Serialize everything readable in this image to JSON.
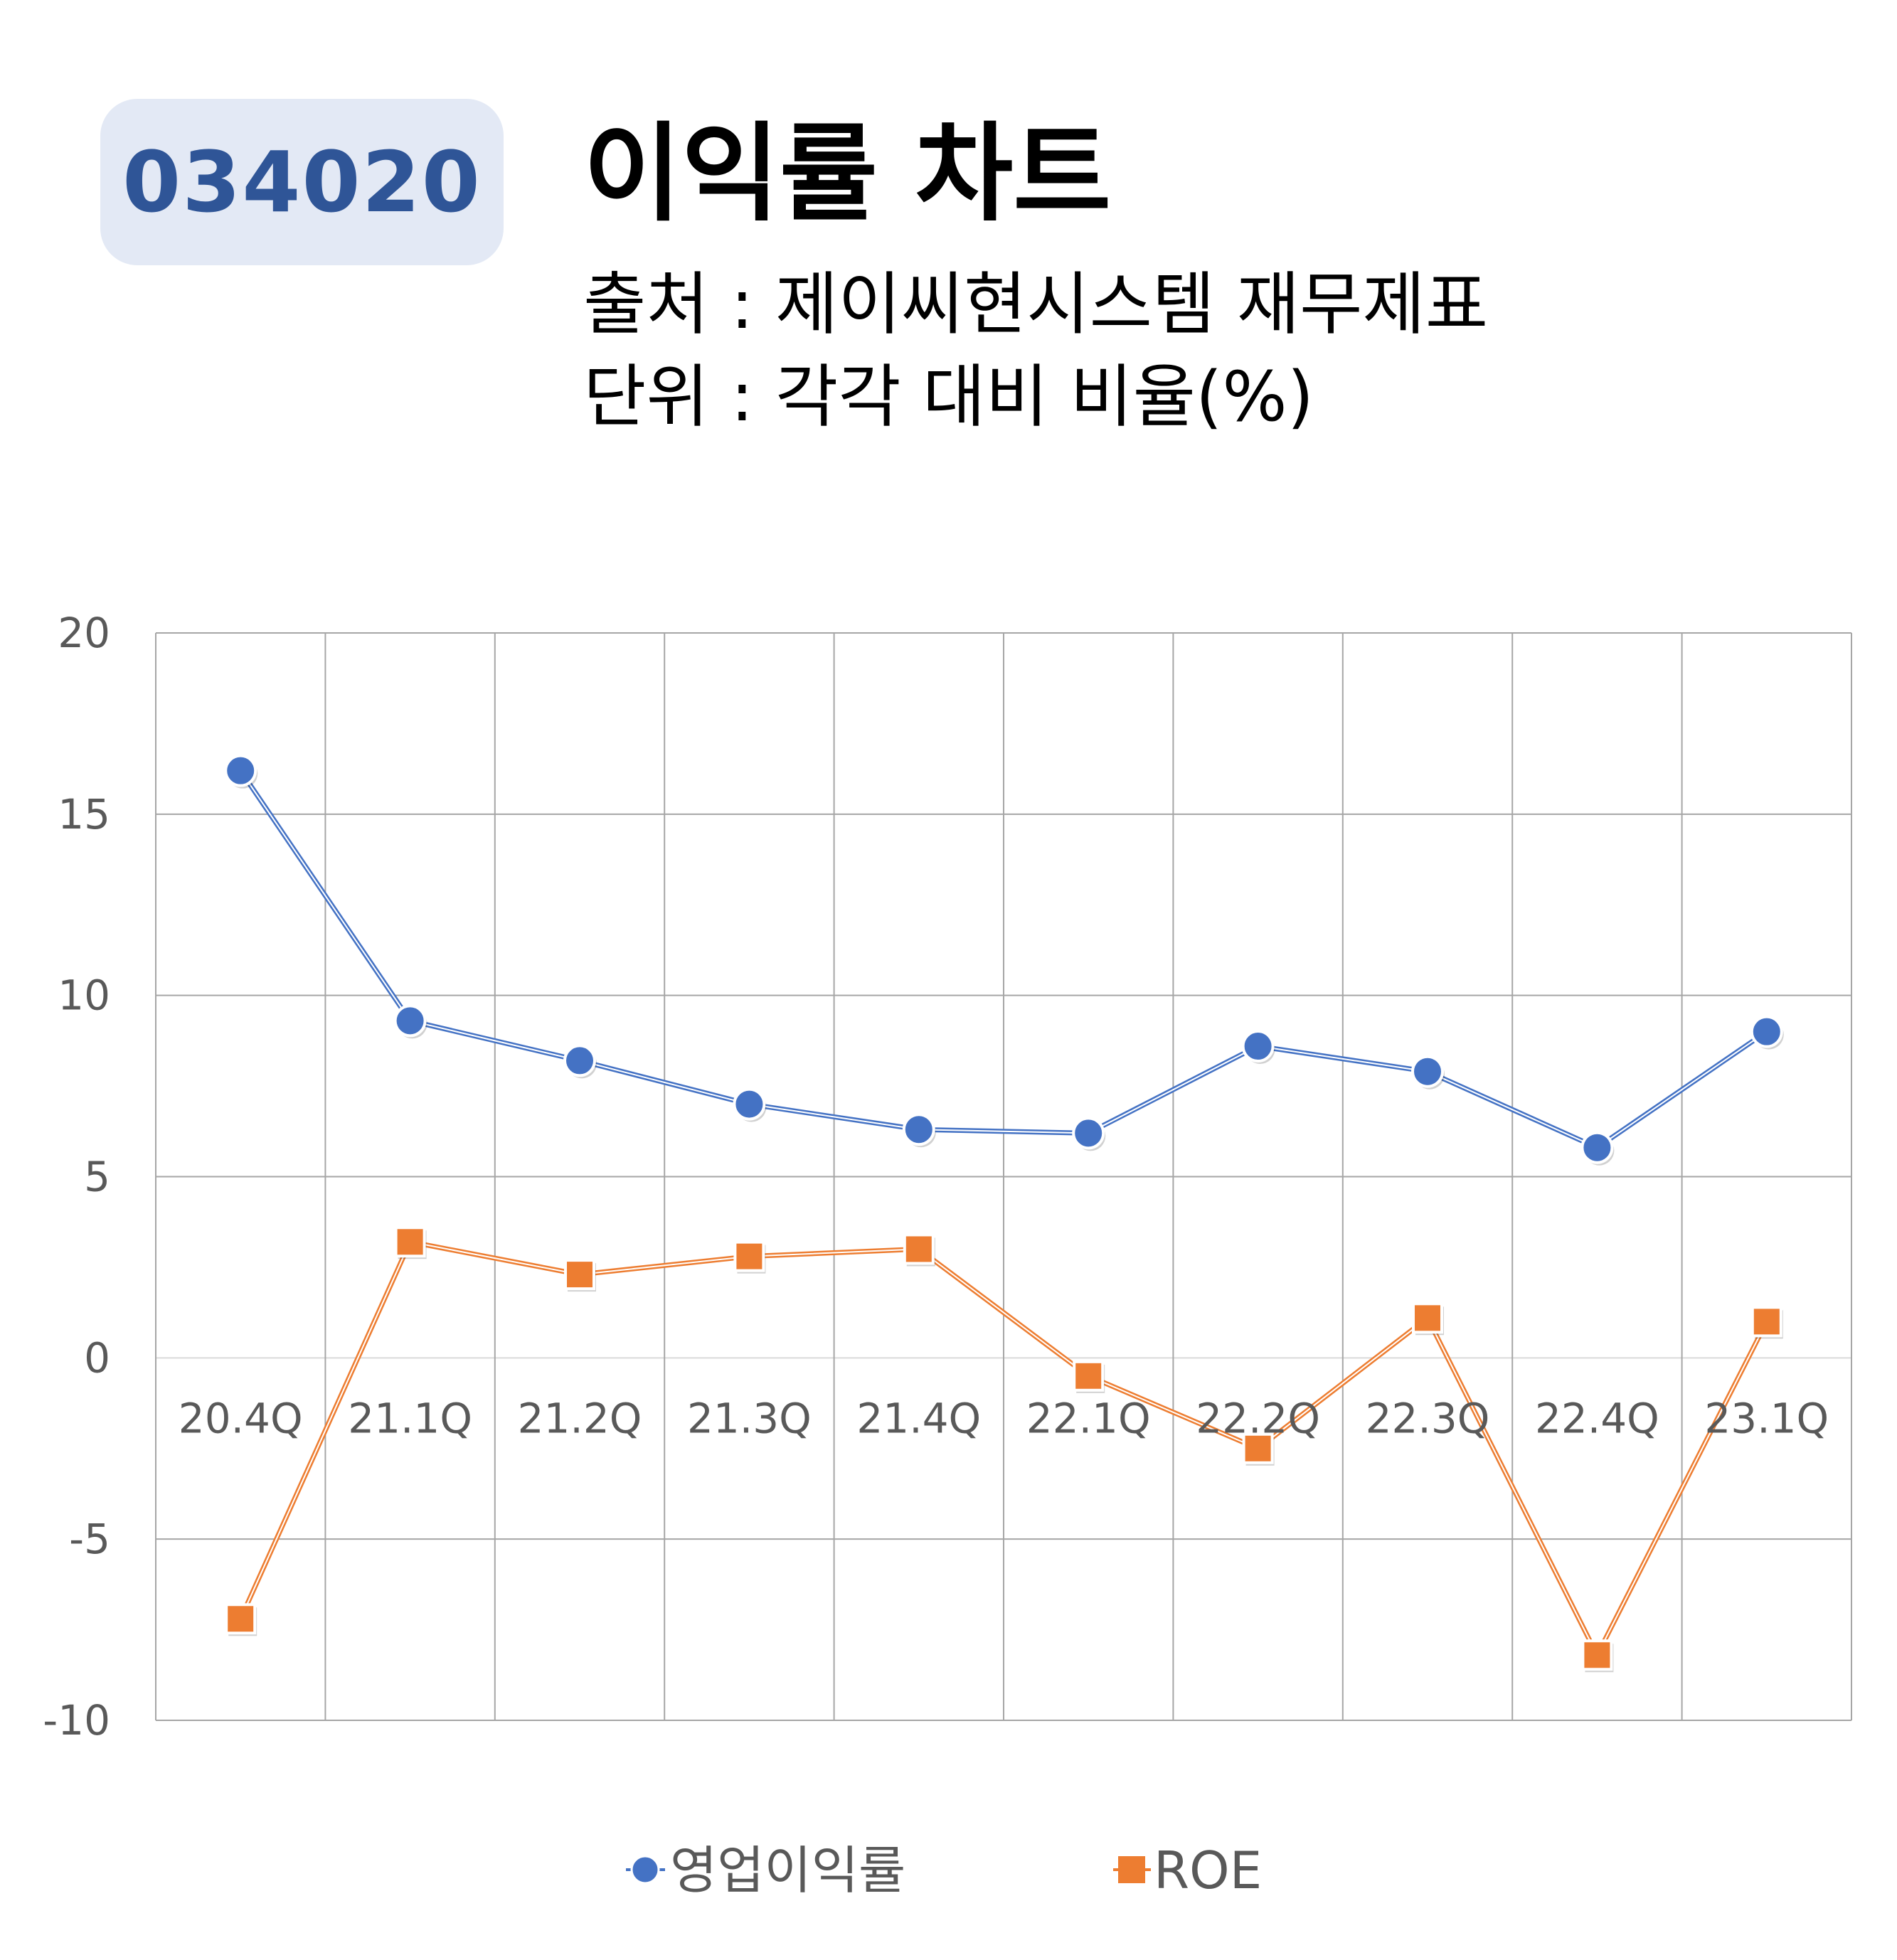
{
  "header": {
    "ticker": "034020",
    "title": "이익률 차트",
    "source_line": "출처 : 제이씨현시스템 재무제표",
    "unit_line": "단위 : 각각 대비 비율(%)"
  },
  "colors": {
    "badge_bg": "#e3e9f5",
    "badge_text": "#2f5597",
    "series_operating": "#4472c4",
    "series_roe": "#ed7d31",
    "grid": "#a6a6a6",
    "axis_text": "#595959"
  },
  "chart_data": {
    "type": "line",
    "categories": [
      "20.4Q",
      "21.1Q",
      "21.2Q",
      "21.3Q",
      "21.4Q",
      "22.1Q",
      "22.2Q",
      "22.3Q",
      "22.4Q",
      "23.1Q"
    ],
    "series": [
      {
        "name": "영업이익률",
        "marker": "circle",
        "color": "#4472c4",
        "values": [
          16.2,
          9.3,
          8.2,
          7.0,
          6.3,
          6.2,
          8.6,
          7.9,
          5.8,
          9.0
        ]
      },
      {
        "name": "ROE",
        "marker": "square",
        "color": "#ed7d31",
        "values": [
          -7.2,
          3.2,
          2.3,
          2.8,
          3.0,
          -0.5,
          -2.5,
          1.1,
          -8.2,
          1.0
        ]
      }
    ],
    "ylim": [
      -10,
      20
    ],
    "yticks": [
      "20",
      "15",
      "10",
      "5",
      "0",
      "-5",
      "-10"
    ],
    "grid": true,
    "legend_position": "bottom",
    "title": "",
    "xlabel": "",
    "ylabel": ""
  }
}
